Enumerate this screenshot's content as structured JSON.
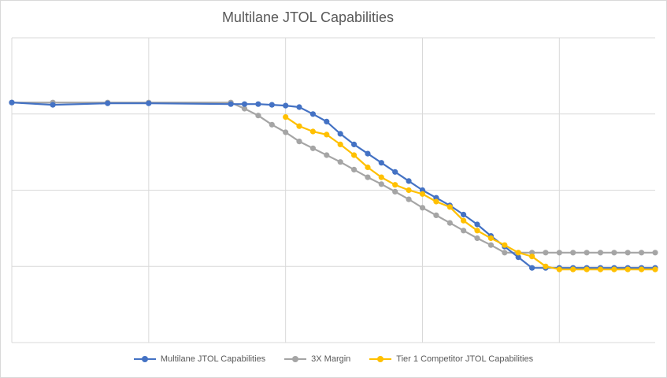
{
  "chart_data": {
    "type": "line",
    "title": "Multilane JTOL Capabilities",
    "xlabel": "",
    "ylabel": "",
    "xlim": [
      0,
      47
    ],
    "ylim": [
      0,
      4
    ],
    "grid": true,
    "legend_position": "bottom",
    "series": [
      {
        "name": "Multilane JTOL Capabilities",
        "color": "#4472c4",
        "x": [
          0,
          3,
          7,
          10,
          16,
          17,
          18,
          19,
          20,
          21,
          22,
          23,
          24,
          25,
          26,
          27,
          28,
          29,
          30,
          31,
          32,
          33,
          34,
          35,
          36,
          37,
          38,
          39,
          40,
          41,
          42,
          43,
          44,
          45,
          46,
          47
        ],
        "y": [
          3.15,
          3.12,
          3.14,
          3.14,
          3.13,
          3.13,
          3.13,
          3.12,
          3.11,
          3.09,
          3.0,
          2.9,
          2.74,
          2.6,
          2.48,
          2.36,
          2.24,
          2.12,
          2.0,
          1.9,
          1.8,
          1.68,
          1.55,
          1.4,
          1.26,
          1.12,
          0.98,
          0.98,
          0.98,
          0.98,
          0.98,
          0.98,
          0.98,
          0.98,
          0.98,
          0.98
        ]
      },
      {
        "name": "3X Margin",
        "color": "#a5a5a5",
        "x": [
          0,
          3,
          7,
          10,
          16,
          17,
          18,
          19,
          20,
          21,
          22,
          23,
          24,
          25,
          26,
          27,
          28,
          29,
          30,
          31,
          32,
          33,
          34,
          35,
          36,
          37,
          38,
          39,
          40,
          41,
          42,
          43,
          44,
          45,
          46,
          47
        ],
        "y": [
          3.15,
          3.15,
          3.15,
          3.15,
          3.15,
          3.07,
          2.98,
          2.86,
          2.76,
          2.64,
          2.55,
          2.46,
          2.37,
          2.27,
          2.17,
          2.08,
          1.98,
          1.88,
          1.77,
          1.67,
          1.57,
          1.47,
          1.37,
          1.28,
          1.18,
          1.18,
          1.18,
          1.18,
          1.18,
          1.18,
          1.18,
          1.18,
          1.18,
          1.18,
          1.18,
          1.18
        ]
      },
      {
        "name": "Tier 1 Competitor JTOL Capabilities",
        "color": "#ffc000",
        "x": [
          20,
          21,
          22,
          23,
          24,
          25,
          26,
          27,
          28,
          29,
          30,
          31,
          32,
          33,
          34,
          35,
          36,
          37,
          38,
          39,
          40,
          41,
          42,
          43,
          44,
          45,
          46,
          47
        ],
        "y": [
          2.96,
          2.84,
          2.77,
          2.73,
          2.6,
          2.46,
          2.3,
          2.17,
          2.07,
          2.0,
          1.95,
          1.85,
          1.78,
          1.6,
          1.47,
          1.37,
          1.28,
          1.18,
          1.13,
          1.0,
          0.96,
          0.96,
          0.96,
          0.96,
          0.96,
          0.96,
          0.96,
          0.96
        ]
      }
    ]
  }
}
